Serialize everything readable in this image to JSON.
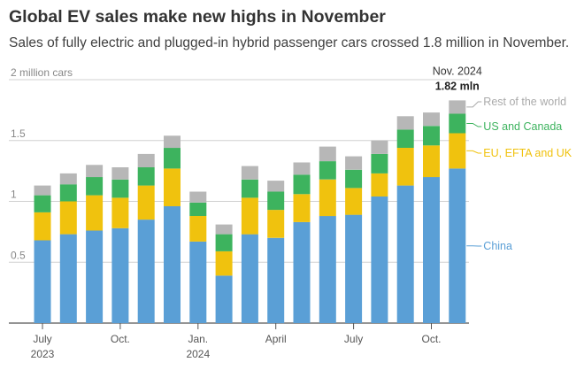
{
  "title": "Global EV sales make new highs in November",
  "subtitle": "Sales of fully electric and plugged-in hybrid passenger cars crossed 1.8 million in November.",
  "colors": {
    "China": "#5a9fd6",
    "EU, EFTA and UK": "#f0c20e",
    "US and Canada": "#3db35e",
    "Rest of the world": "#b7b7b7",
    "grid": "#d0d0d0",
    "axis": "#555555",
    "label": "#888888"
  },
  "chart_data": {
    "type": "bar",
    "stacked": true,
    "unit": "million cars",
    "ylim": [
      0,
      2
    ],
    "yticks": [
      {
        "value": 0.5,
        "label": "0.5"
      },
      {
        "value": 1,
        "label": "1"
      },
      {
        "value": 1.5,
        "label": "1.5"
      },
      {
        "value": 2,
        "label": "2 million cars"
      }
    ],
    "categories": [
      "2023-07",
      "2023-08",
      "2023-09",
      "2023-10",
      "2023-11",
      "2023-12",
      "2024-01",
      "2024-02",
      "2024-03",
      "2024-04",
      "2024-05",
      "2024-06",
      "2024-07",
      "2024-08",
      "2024-09",
      "2024-10",
      "2024-11"
    ],
    "xticks": [
      {
        "index": 0,
        "label": "July",
        "sublabel": "2023"
      },
      {
        "index": 3,
        "label": "Oct."
      },
      {
        "index": 6,
        "label": "Jan.",
        "sublabel": "2024"
      },
      {
        "index": 9,
        "label": "April"
      },
      {
        "index": 12,
        "label": "July"
      },
      {
        "index": 15,
        "label": "Oct."
      }
    ],
    "series": [
      {
        "name": "China",
        "values": [
          0.68,
          0.73,
          0.76,
          0.78,
          0.85,
          0.96,
          0.67,
          0.39,
          0.73,
          0.7,
          0.83,
          0.88,
          0.89,
          1.04,
          1.13,
          1.2,
          1.27
        ]
      },
      {
        "name": "EU, EFTA and UK",
        "values": [
          0.23,
          0.27,
          0.29,
          0.25,
          0.28,
          0.31,
          0.21,
          0.2,
          0.3,
          0.23,
          0.23,
          0.3,
          0.22,
          0.19,
          0.31,
          0.26,
          0.29
        ]
      },
      {
        "name": "US and Canada",
        "values": [
          0.14,
          0.14,
          0.15,
          0.15,
          0.15,
          0.17,
          0.11,
          0.14,
          0.15,
          0.15,
          0.16,
          0.15,
          0.15,
          0.16,
          0.15,
          0.16,
          0.16
        ]
      },
      {
        "name": "Rest of the world",
        "values": [
          0.08,
          0.09,
          0.1,
          0.1,
          0.11,
          0.1,
          0.09,
          0.08,
          0.11,
          0.09,
          0.1,
          0.12,
          0.11,
          0.11,
          0.11,
          0.11,
          0.11
        ]
      }
    ],
    "legend": [
      "Rest of the world",
      "US and Canada",
      "EU, EFTA and UK",
      "China"
    ],
    "annotation": {
      "label": "Nov. 2024",
      "value_label": "1.82 mln",
      "index": 16
    }
  }
}
